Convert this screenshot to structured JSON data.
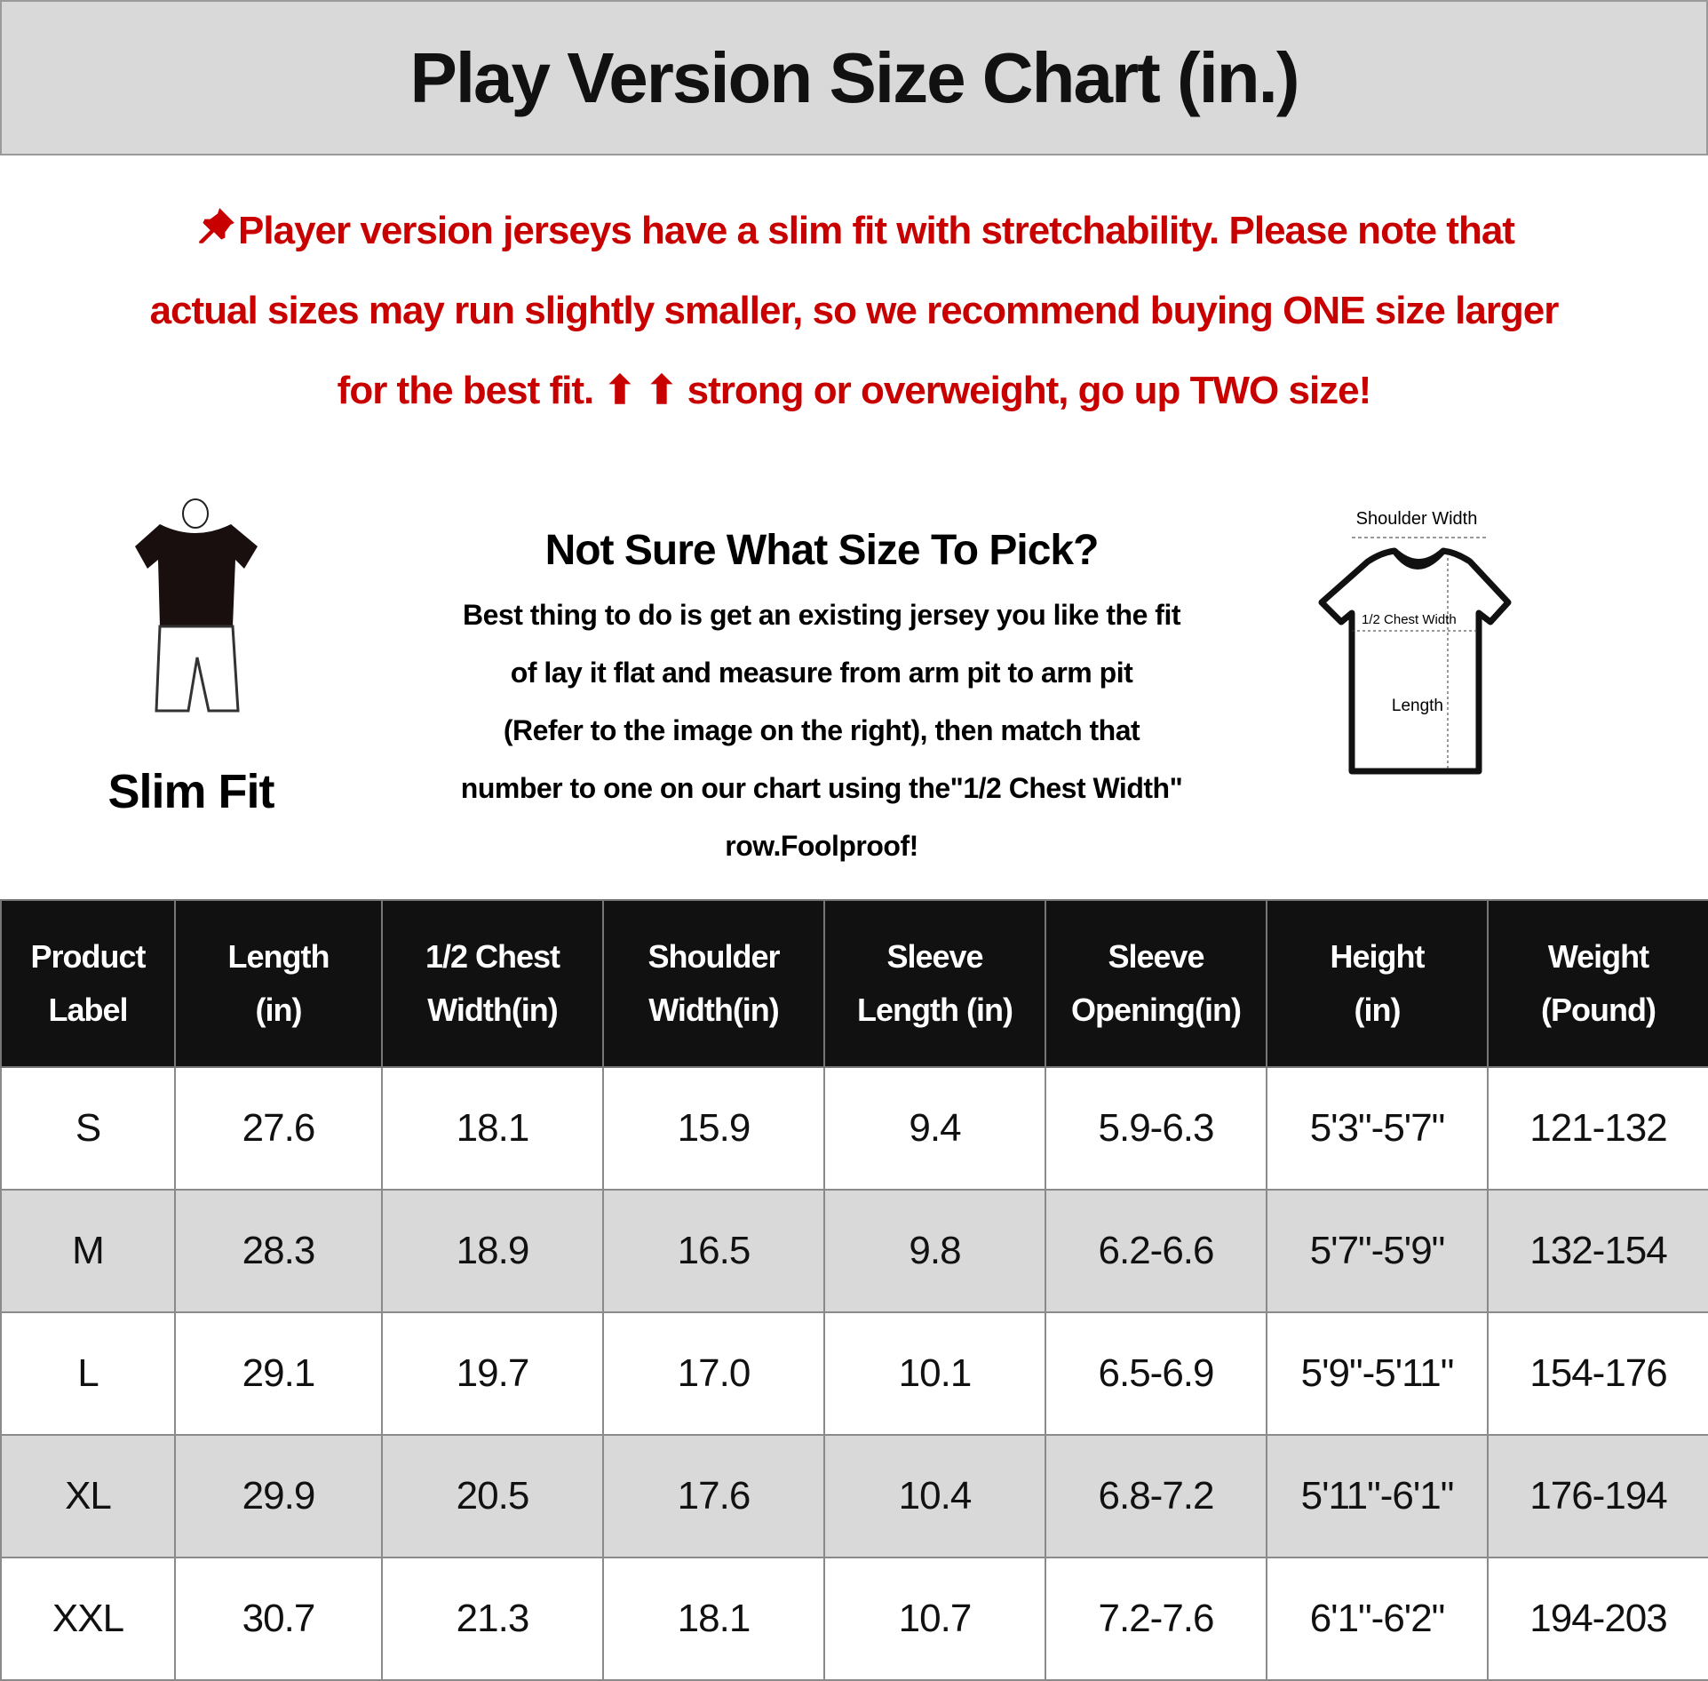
{
  "title": "Play Version Size Chart (in.)",
  "note": {
    "icon": "pushpin-icon",
    "color": "#c80000",
    "lines": [
      "Player version jerseys have a slim fit with stretchability. Please note that",
      "actual sizes may run slightly smaller, so we recommend buying ONE size larger",
      "for the best fit. ⬆ ⬆ strong or overweight, go up TWO size!"
    ]
  },
  "slim_fit": {
    "label": "Slim Fit"
  },
  "tip": {
    "title": "Not Sure What Size To Pick?",
    "lines": [
      "Best thing to do is get an existing jersey you like the fit",
      "of lay it flat and measure from arm pit to arm pit",
      "(Refer to the image on the right), then match that",
      "number to one on our chart using the\"1/2 Chest Width\"",
      "row.Foolproof!"
    ]
  },
  "diagram": {
    "shoulder": "Shoulder Width",
    "chest": "1/2 Chest Width",
    "length": "Length"
  },
  "table": {
    "headers": [
      [
        "Product",
        "Label"
      ],
      [
        "Length",
        "(in)"
      ],
      [
        "1/2 Chest",
        "Width(in)"
      ],
      [
        "Shoulder",
        "Width(in)"
      ],
      [
        "Sleeve",
        "Length (in)"
      ],
      [
        "Sleeve",
        "Opening(in)"
      ],
      [
        "Height",
        "(in)"
      ],
      [
        "Weight",
        "(Pound)"
      ]
    ],
    "rows": [
      [
        "S",
        "27.6",
        "18.1",
        "15.9",
        "9.4",
        "5.9-6.3",
        "5'3\"-5'7\"",
        "121-132"
      ],
      [
        "M",
        "28.3",
        "18.9",
        "16.5",
        "9.8",
        "6.2-6.6",
        "5'7\"-5'9\"",
        "132-154"
      ],
      [
        "L",
        "29.1",
        "19.7",
        "17.0",
        "10.1",
        "6.5-6.9",
        "5'9\"-5'11\"",
        "154-176"
      ],
      [
        "XL",
        "29.9",
        "20.5",
        "17.6",
        "10.4",
        "6.8-7.2",
        "5'11\"-6'1\"",
        "176-194"
      ],
      [
        "XXL",
        "30.7",
        "21.3",
        "18.1",
        "10.7",
        "7.2-7.6",
        "6'1\"-6'2\"",
        "194-203"
      ]
    ]
  }
}
